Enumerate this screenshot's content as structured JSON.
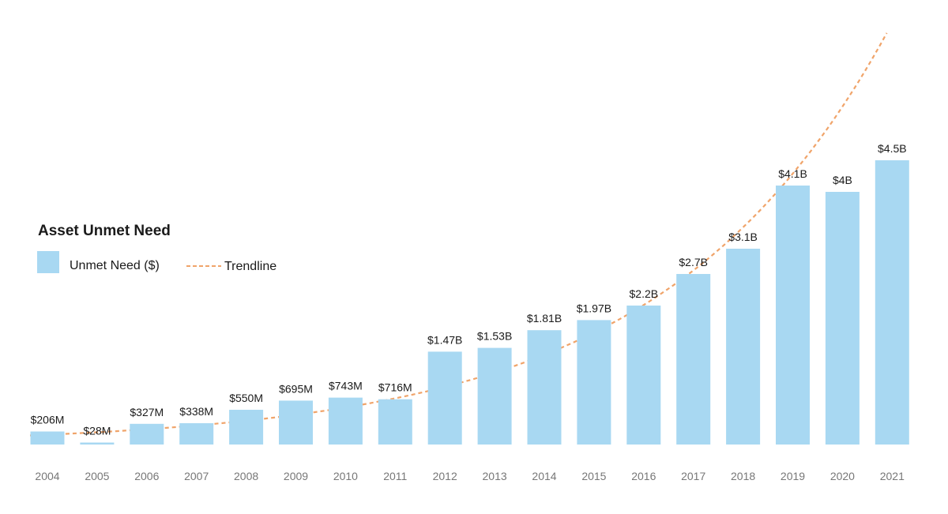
{
  "chart_data": {
    "type": "bar",
    "title": "Asset Unmet Need",
    "categories": [
      "2004",
      "2005",
      "2006",
      "2007",
      "2008",
      "2009",
      "2010",
      "2011",
      "2012",
      "2013",
      "2014",
      "2015",
      "2016",
      "2017",
      "2018",
      "2019",
      "2020",
      "2021"
    ],
    "series": [
      {
        "name": "Unmet Need ($)",
        "values": [
          0.206,
          0.028,
          0.327,
          0.338,
          0.55,
          0.695,
          0.743,
          0.716,
          1.47,
          1.53,
          1.81,
          1.97,
          2.2,
          2.7,
          3.1,
          4.1,
          4.0,
          4.5
        ],
        "labels": [
          "$206M",
          "$28M",
          "$327M",
          "$338M",
          "$550M",
          "$695M",
          "$743M",
          "$716M",
          "$1.47B",
          "$1.53B",
          "$1.81B",
          "$1.97B",
          "$2.2B",
          "$2.7B",
          "$3.1B",
          "$4.1B",
          "$4B",
          "$4.5B"
        ],
        "color": "#a8d8f2"
      },
      {
        "name": "Trendline",
        "type": "trendline",
        "style": "dashed",
        "color": "#f0a46a"
      }
    ],
    "unit": "billions USD",
    "ylim": [
      0,
      6.6
    ],
    "grid": false,
    "legend_position": "left"
  }
}
